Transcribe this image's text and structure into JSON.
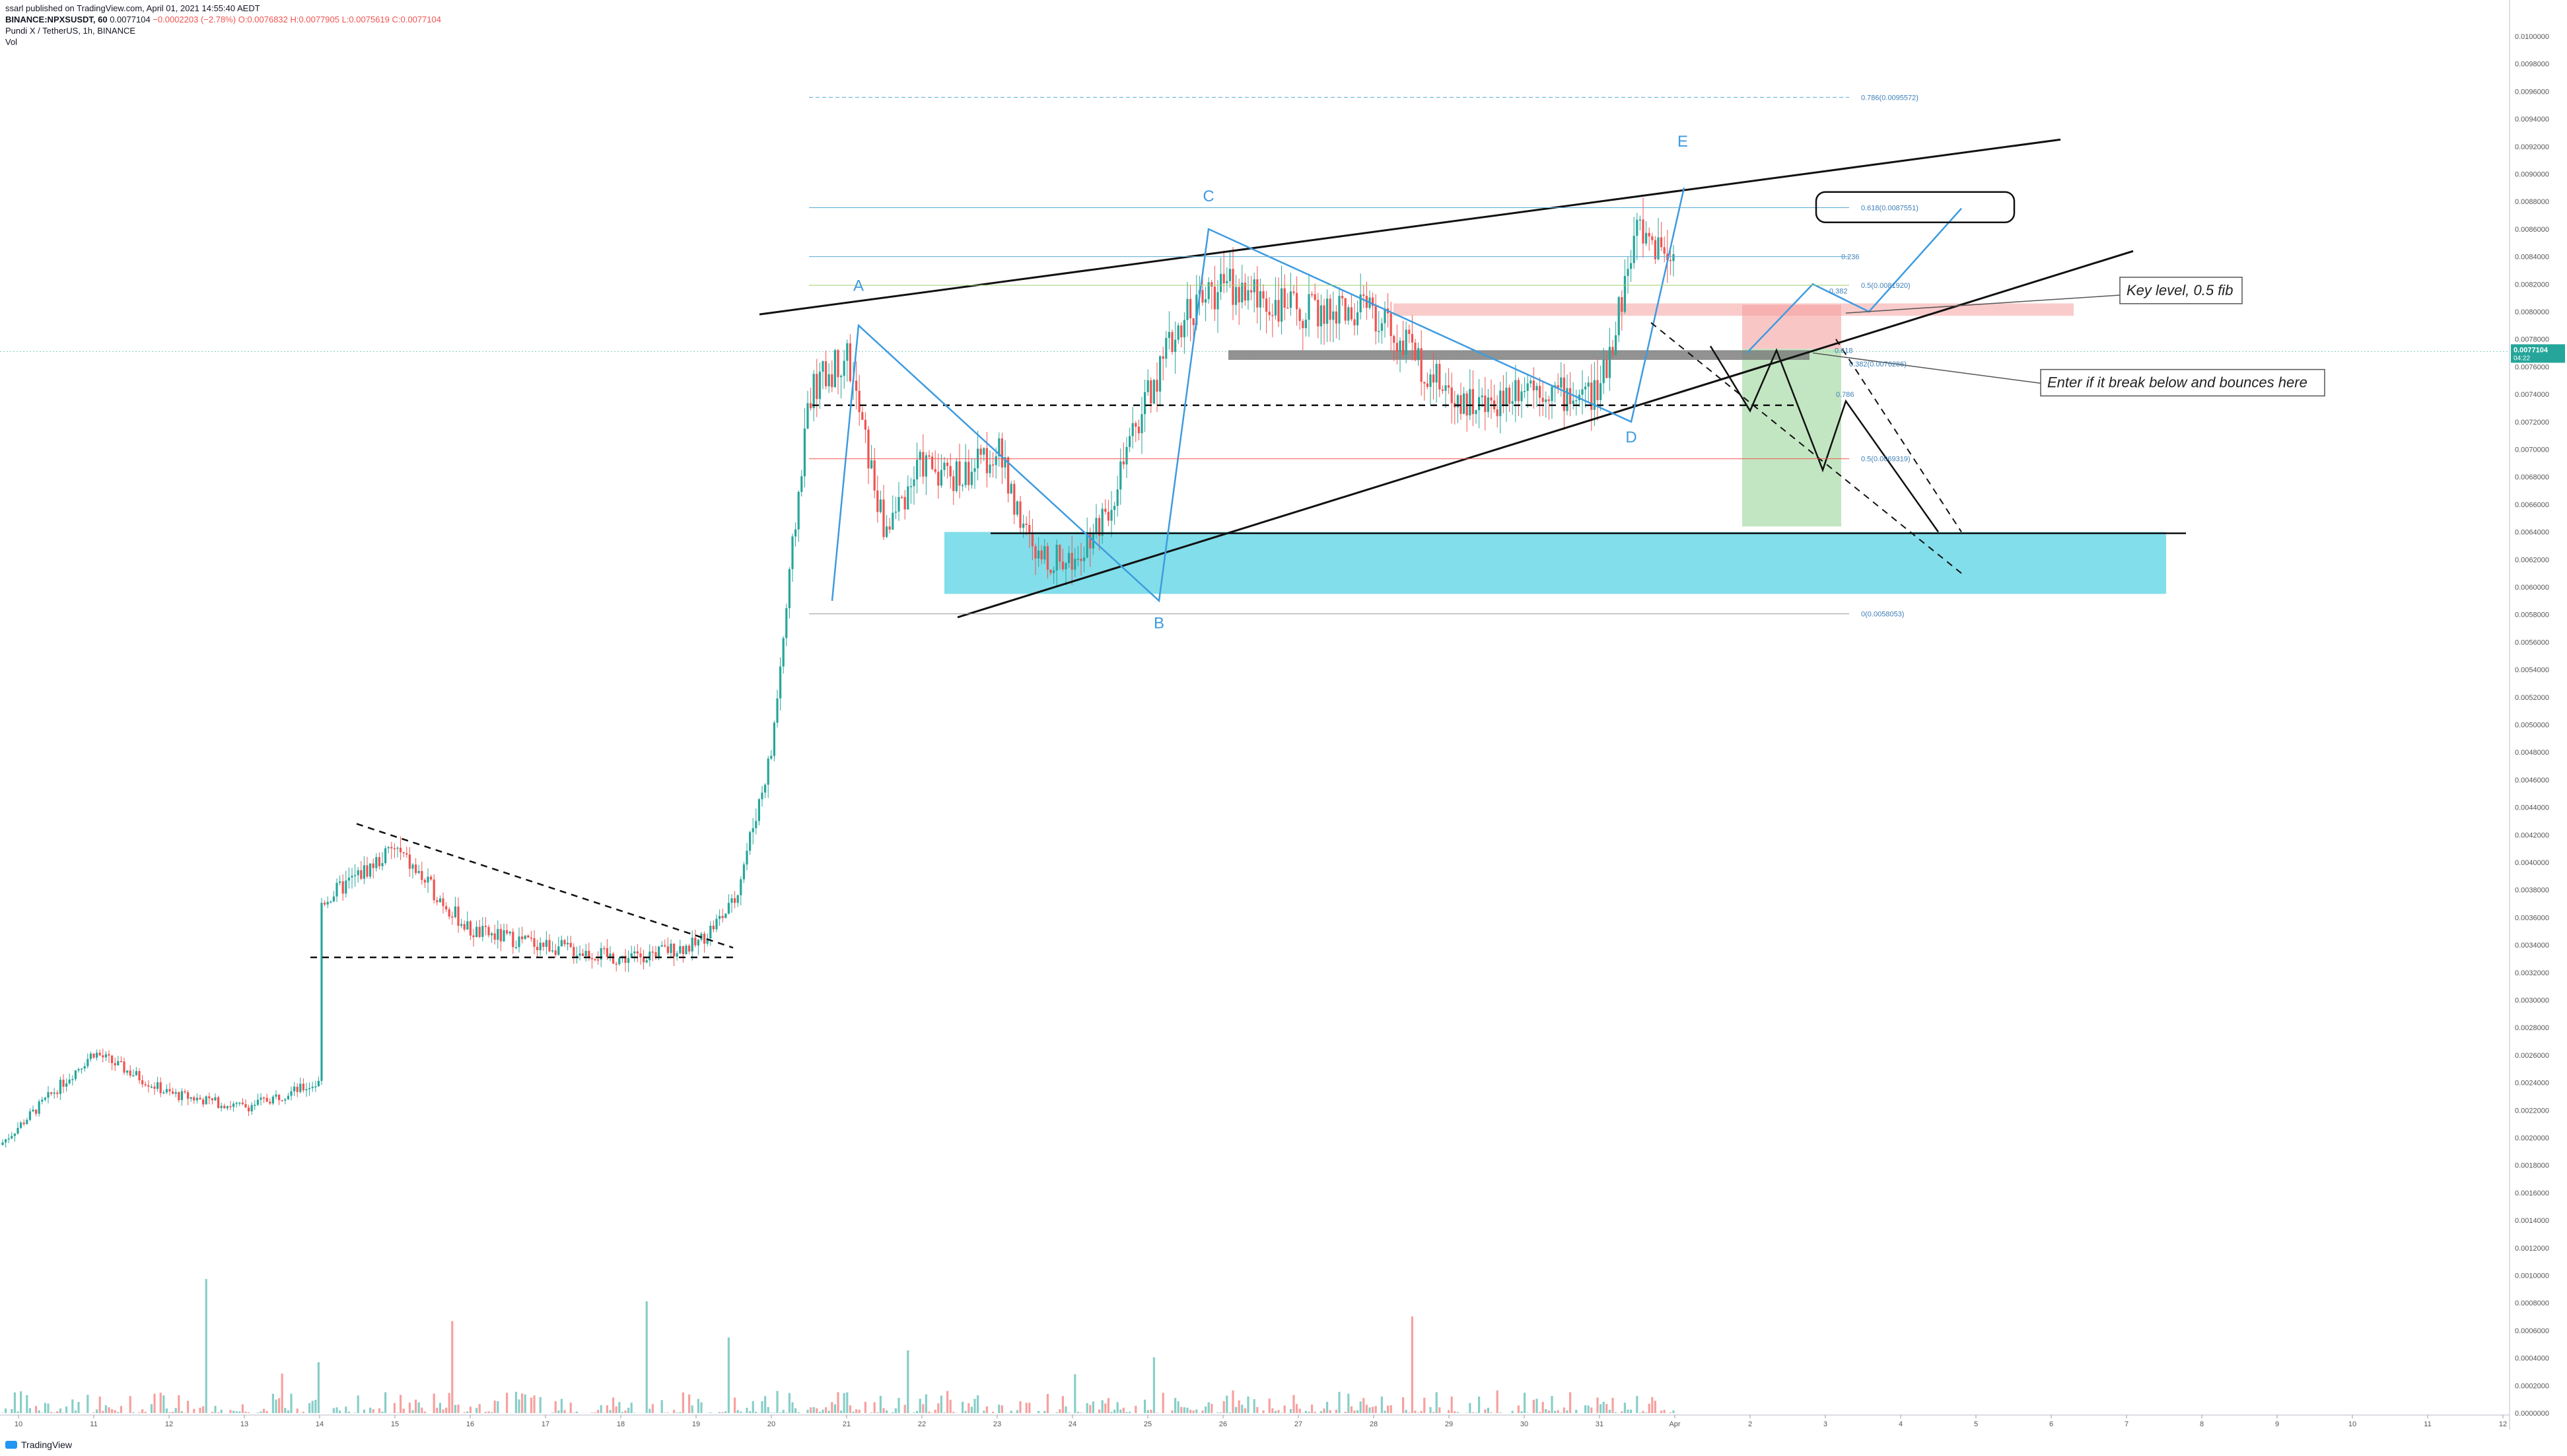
{
  "header": {
    "published": "ssarl published on TradingView.com, April 01, 2021 14:55:40 AEDT",
    "symbol_line": "BINANCE:NPXSUSDT, 60",
    "open": "0.0077104",
    "change": "−0.0002203 (−2.78%)",
    "ohlc_o": "O:0.0076832",
    "ohlc_h": "H:0.0077905",
    "ohlc_l": "L:0.0075619",
    "ohlc_c": "C:0.0077104",
    "title": "Pundi X / TetherUS, 1h, BINANCE",
    "vol_label": "Vol"
  },
  "footer": {
    "brand": "TradingView"
  },
  "colors": {
    "up": "#26a69a",
    "down": "#ef5350",
    "pattern": "#3d9be0",
    "zone": "#4dd0e1",
    "short_zone": "#8fd18f",
    "risk_zone": "#f5a0a0"
  },
  "chart_data": {
    "type": "candlestick",
    "title": "Pundi X / TetherUS, 1h, BINANCE",
    "price_axis": {
      "ylim": [
        0.0,
        0.01
      ],
      "ticks": [
        "0.0100000",
        "0.0098000",
        "0.0096000",
        "0.0094000",
        "0.0092000",
        "0.0090000",
        "0.0088000",
        "0.0086000",
        "0.0084000",
        "0.0082000",
        "0.0080000",
        "0.0078000",
        "0.0076000",
        "0.0074000",
        "0.0072000",
        "0.0070000",
        "0.0068000",
        "0.0066000",
        "0.0064000",
        "0.0062000",
        "0.0060000",
        "0.0058000",
        "0.0056000",
        "0.0054000",
        "0.0052000",
        "0.0050000",
        "0.0048000",
        "0.0046000",
        "0.0044000",
        "0.0042000",
        "0.0040000",
        "0.0038000",
        "0.0036000",
        "0.0034000",
        "0.0032000",
        "0.0030000",
        "0.0028000",
        "0.0026000",
        "0.0024000",
        "0.0022000",
        "0.0020000",
        "0.0018000",
        "0.0016000",
        "0.0014000",
        "0.0012000",
        "0.0010000",
        "0.0008000",
        "0.0006000",
        "0.0004000",
        "0.0002000",
        "0.0000000"
      ],
      "current_price": "0.0077104",
      "countdown": "04:22"
    },
    "time_axis": [
      "10",
      "11",
      "12",
      "13",
      "14",
      "15",
      "16",
      "17",
      "18",
      "19",
      "20",
      "21",
      "22",
      "23",
      "24",
      "25",
      "26",
      "27",
      "28",
      "29",
      "30",
      "31",
      "Apr",
      "2",
      "3",
      "4",
      "5",
      "6",
      "7",
      "8",
      "9",
      "10",
      "11",
      "12"
    ],
    "price_path": [
      [
        "10",
        0.00208
      ],
      [
        "11",
        0.00262
      ],
      [
        "12",
        0.00232
      ],
      [
        "13",
        0.00222
      ],
      [
        "14",
        0.0024
      ],
      [
        "14",
        0.0037
      ],
      [
        "15",
        0.0041
      ],
      [
        "16",
        0.0035
      ],
      [
        "17",
        0.0034
      ],
      [
        "18",
        0.0033
      ],
      [
        "19",
        0.0034
      ],
      [
        "19.5",
        0.0037
      ],
      [
        "20",
        0.0048
      ],
      [
        "20.5",
        0.0074
      ],
      [
        "21",
        0.0077
      ],
      [
        "21.5",
        0.0064
      ],
      [
        "22",
        0.0069
      ],
      [
        "22.5",
        0.0068
      ],
      [
        "23",
        0.007
      ],
      [
        "23.5",
        0.0062
      ],
      [
        "24",
        0.0062
      ],
      [
        "24.5",
        0.0066
      ],
      [
        "25",
        0.0074
      ],
      [
        "25.5",
        0.008
      ],
      [
        "26",
        0.0082
      ],
      [
        "27",
        0.008
      ],
      [
        "28",
        0.008
      ],
      [
        "28.5",
        0.0077
      ],
      [
        "29",
        0.0074
      ],
      [
        "29.5",
        0.0073
      ],
      [
        "30",
        0.0075
      ],
      [
        "30.5",
        0.0074
      ],
      [
        "31",
        0.0074
      ],
      [
        "31.5",
        0.0086
      ],
      [
        "Apr",
        0.0084
      ],
      [
        "Apr",
        0.00771
      ]
    ],
    "annotations": {
      "wave_labels": [
        "A",
        "B",
        "C",
        "D",
        "E"
      ],
      "fib_labels": [
        "0.786(0.0095572)",
        "0.618(0.0087551)",
        "0.236",
        "0.5(0.0081920)",
        "0.382",
        "0.618",
        "0.382(0.0076286)",
        "0.786",
        "0.5(0.0069319)",
        "0(0.0058053)"
      ],
      "notes": [
        "Key level, 0.5 fib",
        "Enter if it break below and bounces here"
      ]
    },
    "volume": {
      "label": "Vol",
      "max_approx": 0.0022
    }
  }
}
